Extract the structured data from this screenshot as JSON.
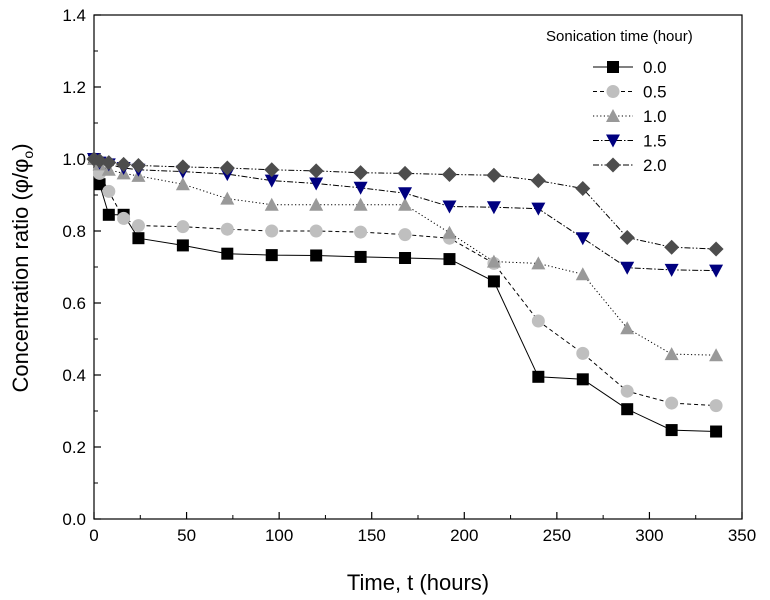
{
  "chart_data": {
    "type": "line",
    "xlabel": "Time, t (hours)",
    "ylabel_main": "Concentration ratio (φ/φ",
    "ylabel_sub": "o",
    "ylabel_close": ")",
    "xlim": [
      0,
      350
    ],
    "ylim": [
      0.0,
      1.4
    ],
    "xticks": [
      0,
      50,
      100,
      150,
      200,
      250,
      300,
      350
    ],
    "yticks": [
      0.0,
      0.2,
      0.4,
      0.6,
      0.8,
      1.0,
      1.2,
      1.4
    ],
    "ytick_labels": [
      "0.0",
      "0.2",
      "0.4",
      "0.6",
      "0.8",
      "1.0",
      "1.2",
      "1.4"
    ],
    "grid": false,
    "legend_title": "Sonication time (hour)",
    "legend_placement": "top-right",
    "x": [
      0,
      3,
      8,
      16,
      24,
      48,
      72,
      96,
      120,
      144,
      168,
      192,
      216,
      240,
      264,
      288,
      312,
      336
    ],
    "series": [
      {
        "name": "0.0",
        "marker": "square",
        "color": "#000000",
        "dash": "solid",
        "values": [
          1.0,
          0.93,
          0.845,
          0.845,
          0.78,
          0.76,
          0.737,
          0.733,
          0.732,
          0.728,
          0.725,
          0.722,
          0.66,
          0.395,
          0.388,
          0.305,
          0.247,
          0.243
        ]
      },
      {
        "name": "0.5",
        "marker": "circle",
        "color": "#bfbfbf",
        "dash": "dashed",
        "values": [
          1.0,
          0.96,
          0.91,
          0.835,
          0.815,
          0.812,
          0.805,
          0.8,
          0.8,
          0.797,
          0.79,
          0.78,
          0.71,
          0.55,
          0.46,
          0.355,
          0.322,
          0.315
        ]
      },
      {
        "name": "1.0",
        "marker": "triangle-up",
        "color": "#999999",
        "dash": "dotted",
        "values": [
          1.0,
          0.985,
          0.97,
          0.96,
          0.953,
          0.93,
          0.89,
          0.873,
          0.873,
          0.873,
          0.873,
          0.795,
          0.715,
          0.71,
          0.68,
          0.53,
          0.458,
          0.455
        ]
      },
      {
        "name": "1.5",
        "marker": "triangle-down",
        "color": "#00007f",
        "dash": "dashdot",
        "values": [
          1.0,
          0.99,
          0.985,
          0.975,
          0.97,
          0.965,
          0.958,
          0.94,
          0.932,
          0.92,
          0.905,
          0.868,
          0.866,
          0.862,
          0.78,
          0.698,
          0.692,
          0.69
        ]
      },
      {
        "name": "2.0",
        "marker": "diamond",
        "color": "#4d4d4d",
        "dash": "dashdotdot",
        "values": [
          1.0,
          0.995,
          0.99,
          0.985,
          0.982,
          0.978,
          0.975,
          0.97,
          0.967,
          0.962,
          0.96,
          0.957,
          0.955,
          0.94,
          0.918,
          0.782,
          0.755,
          0.75
        ]
      }
    ]
  }
}
